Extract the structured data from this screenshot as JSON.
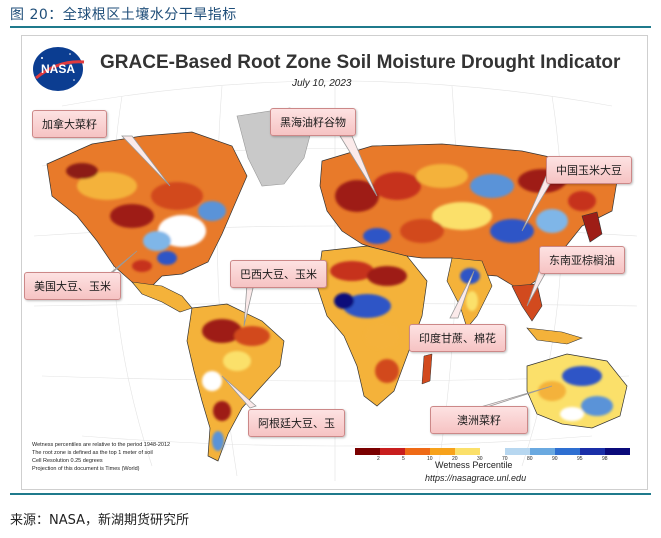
{
  "figure": {
    "title": "图 20：全球根区土壤水分干旱指标",
    "source": "来源：NASA，新湖期货研究所"
  },
  "map": {
    "title": "GRACE-Based Root Zone Soil Moisture Drought Indicator",
    "date": "July 10, 2023",
    "logo_text": "NASA",
    "notes": [
      "Wetness percentiles are relative to the period 1948-2012",
      "The root zone is defined as the top 1 meter of soil",
      "Cell Resolution 0.25 degrees",
      "Projection of this document is Times (World)"
    ],
    "legend": {
      "label": "Wetness Percentile",
      "ticks": [
        "2",
        "5",
        "10",
        "20",
        "30",
        "70",
        "80",
        "90",
        "95",
        "98"
      ],
      "colors": [
        "#7a0000",
        "#c81e1e",
        "#ef6a16",
        "#f7a21b",
        "#fbe06a",
        "#ffffff",
        "#b7d7f0",
        "#6aa9e0",
        "#2e6fd1",
        "#1a2fa8",
        "#0a0a7a"
      ]
    },
    "url": "https://nasagrace.unl.edu"
  },
  "callouts": [
    {
      "id": "canola",
      "label": "加拿大菜籽"
    },
    {
      "id": "blacksea",
      "label": "黑海油籽谷物"
    },
    {
      "id": "china",
      "label": "中国玉米大豆"
    },
    {
      "id": "seasia",
      "label": "东南亚棕榈油"
    },
    {
      "id": "us",
      "label": "美国大豆、玉米"
    },
    {
      "id": "brazil",
      "label": "巴西大豆、玉米"
    },
    {
      "id": "india",
      "label": "印度甘蔗、棉花"
    },
    {
      "id": "argentina",
      "label": "阿根廷大豆、玉"
    },
    {
      "id": "australia",
      "label": "澳洲菜籽"
    }
  ]
}
